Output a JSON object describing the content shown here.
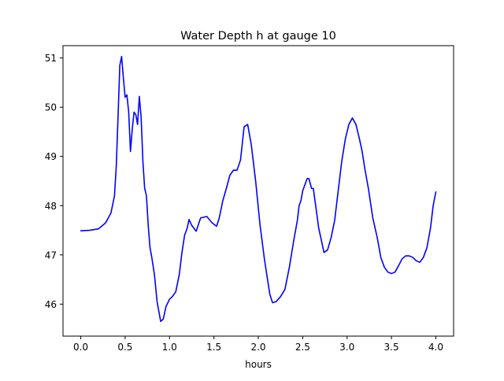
{
  "chart_data": {
    "type": "line",
    "title": "Water Depth h at gauge 10",
    "xlabel": "hours",
    "ylabel": "",
    "xlim": [
      -0.2,
      4.2
    ],
    "ylim": [
      45.35,
      51.25
    ],
    "xticks": [
      0.0,
      0.5,
      1.0,
      1.5,
      2.0,
      2.5,
      3.0,
      3.5,
      4.0
    ],
    "xtick_labels": [
      "0.0",
      "0.5",
      "1.0",
      "1.5",
      "2.0",
      "2.5",
      "3.0",
      "3.5",
      "4.0"
    ],
    "yticks": [
      46,
      47,
      48,
      49,
      50,
      51
    ],
    "ytick_labels": [
      "46",
      "47",
      "48",
      "49",
      "50",
      "51"
    ],
    "grid": false,
    "series": [
      {
        "color": "#0000ff",
        "x": [
          0.0,
          0.1,
          0.2,
          0.28,
          0.34,
          0.38,
          0.4,
          0.42,
          0.44,
          0.46,
          0.48,
          0.5,
          0.52,
          0.54,
          0.56,
          0.58,
          0.6,
          0.62,
          0.64,
          0.66,
          0.68,
          0.7,
          0.72,
          0.74,
          0.76,
          0.78,
          0.8,
          0.83,
          0.86,
          0.9,
          0.93,
          0.96,
          1.0,
          1.03,
          1.07,
          1.11,
          1.14,
          1.17,
          1.2,
          1.22,
          1.25,
          1.3,
          1.35,
          1.42,
          1.48,
          1.53,
          1.56,
          1.6,
          1.64,
          1.68,
          1.72,
          1.76,
          1.8,
          1.84,
          1.88,
          1.92,
          1.97,
          2.02,
          2.07,
          2.1,
          2.13,
          2.16,
          2.2,
          2.25,
          2.3,
          2.35,
          2.4,
          2.44,
          2.46,
          2.48,
          2.5,
          2.52,
          2.55,
          2.57,
          2.6,
          2.62,
          2.65,
          2.68,
          2.71,
          2.74,
          2.78,
          2.82,
          2.86,
          2.9,
          2.94,
          2.98,
          3.02,
          3.06,
          3.1,
          3.14,
          3.17,
          3.2,
          3.24,
          3.29,
          3.34,
          3.38,
          3.42,
          3.46,
          3.5,
          3.54,
          3.58,
          3.62,
          3.66,
          3.7,
          3.74,
          3.78,
          3.82,
          3.86,
          3.9,
          3.94,
          3.97,
          4.0
        ],
        "y": [
          47.49,
          47.5,
          47.53,
          47.65,
          47.85,
          48.2,
          48.8,
          49.8,
          50.85,
          51.03,
          50.6,
          50.2,
          50.25,
          49.9,
          49.1,
          49.55,
          49.9,
          49.85,
          49.65,
          50.22,
          49.8,
          48.9,
          48.35,
          48.2,
          47.6,
          47.15,
          46.95,
          46.6,
          46.05,
          45.65,
          45.7,
          45.95,
          46.1,
          46.15,
          46.25,
          46.6,
          47.05,
          47.4,
          47.55,
          47.72,
          47.6,
          47.48,
          47.75,
          47.78,
          47.65,
          47.58,
          47.75,
          48.1,
          48.35,
          48.62,
          48.72,
          48.72,
          48.93,
          49.6,
          49.65,
          49.25,
          48.5,
          47.6,
          46.9,
          46.55,
          46.2,
          46.03,
          46.05,
          46.15,
          46.3,
          46.75,
          47.3,
          47.7,
          48.0,
          48.1,
          48.3,
          48.4,
          48.55,
          48.55,
          48.35,
          48.35,
          47.95,
          47.55,
          47.3,
          47.05,
          47.1,
          47.35,
          47.7,
          48.3,
          48.9,
          49.35,
          49.65,
          49.78,
          49.65,
          49.35,
          49.1,
          48.75,
          48.35,
          47.75,
          47.35,
          46.95,
          46.75,
          46.65,
          46.62,
          46.65,
          46.78,
          46.92,
          46.98,
          46.98,
          46.95,
          46.88,
          46.85,
          46.95,
          47.15,
          47.55,
          48.0,
          48.28
        ]
      }
    ]
  }
}
